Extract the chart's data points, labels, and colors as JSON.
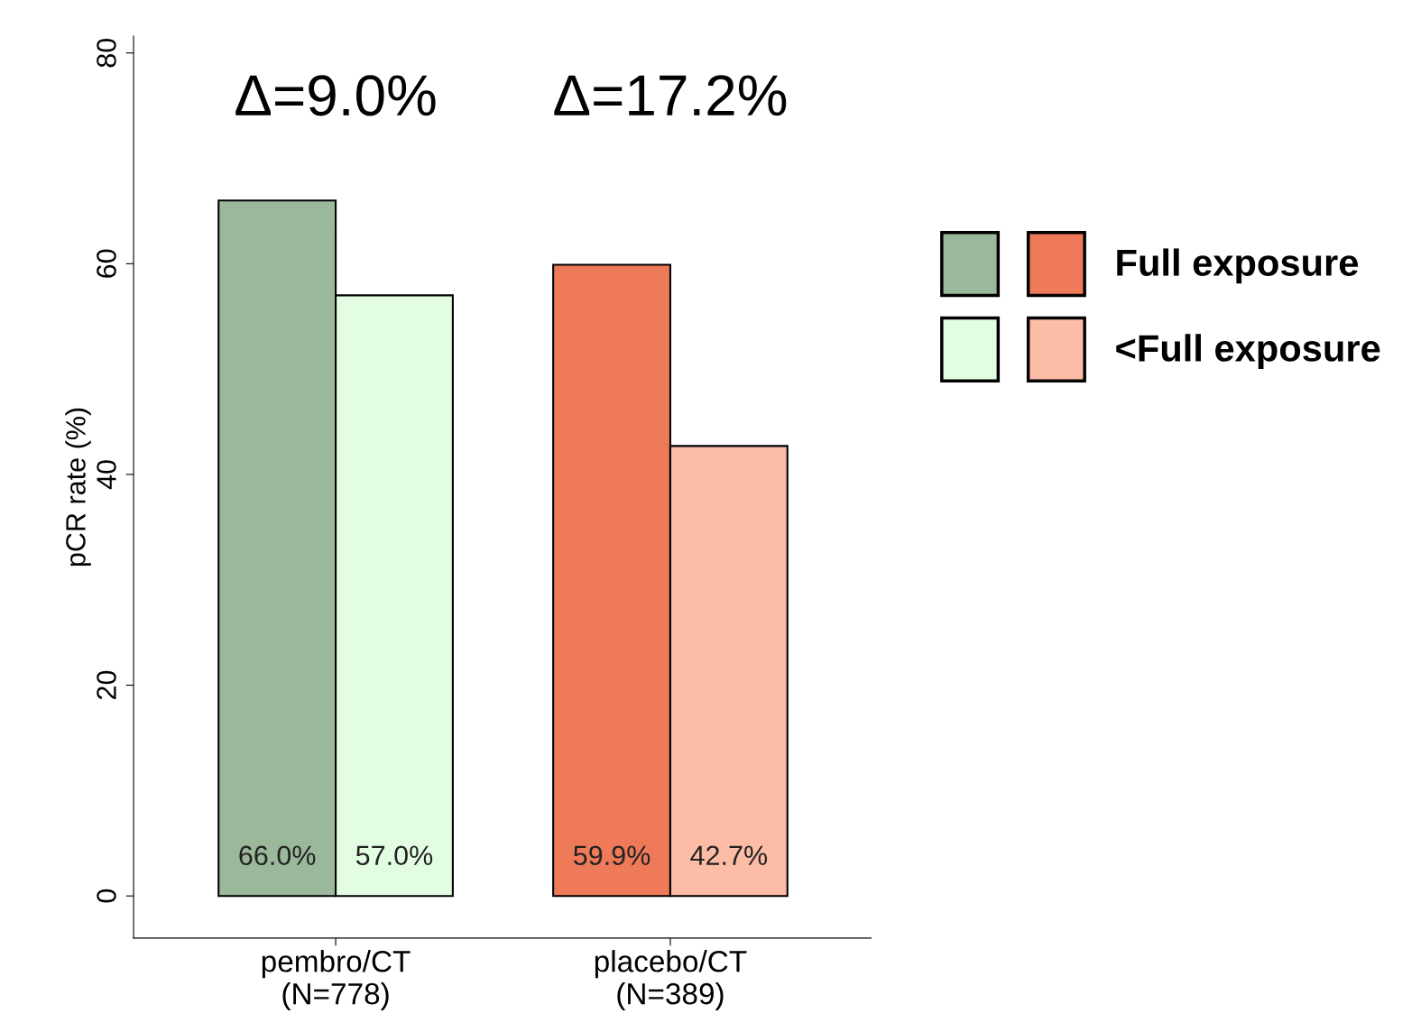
{
  "chart_data": {
    "type": "bar",
    "ylabel": "pCR rate (%)",
    "categories": [
      "pembro/CT\n(N=778)",
      "placebo/CT\n(N=389)"
    ],
    "series": [
      {
        "name": "Full exposure",
        "colors": [
          "#9bb89b",
          "#ee7a5a"
        ],
        "values": [
          66.0,
          59.9
        ],
        "value_labels": [
          "66.0%",
          "59.9%"
        ]
      },
      {
        "name": "<Full exposure",
        "colors": [
          "#e3fde3",
          "#fdbca6"
        ],
        "values": [
          57.0,
          42.7
        ],
        "value_labels": [
          "57.0%",
          "42.7%"
        ]
      }
    ],
    "annotations": [
      "Δ=9.0%",
      "Δ=17.2%"
    ],
    "ylim": [
      -4,
      81.6
    ],
    "yticks": [
      0,
      20,
      40,
      60,
      80
    ],
    "grid": false,
    "legend": "right"
  }
}
